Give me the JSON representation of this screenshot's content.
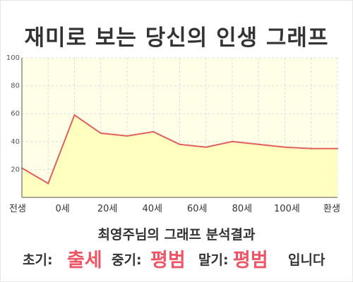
{
  "title": "재미로 보는 당신의 인생 그래프",
  "subtitle": "최영주님의 그래프 분석결과",
  "result": {
    "early_label": "초기:",
    "early_value": "출세",
    "mid_label": "중기:",
    "mid_value": "평범",
    "late_label": "말기:",
    "late_value": "평범",
    "suffix": "입니다"
  },
  "colors": {
    "accent": "#ee5566",
    "line": "#e06060",
    "fill": "#ffffc0",
    "plot_bg": "#ffffe8",
    "grid": "#dddddd"
  },
  "chart_data": {
    "type": "area",
    "title": "재미로 보는 당신의 인생 그래프",
    "x": [
      0,
      1,
      2,
      3,
      4,
      5,
      6,
      7,
      8,
      9,
      10,
      11,
      12
    ],
    "y": [
      21,
      10,
      59,
      46,
      44,
      47,
      38,
      36,
      40,
      38,
      36,
      35,
      35
    ],
    "xlabel": "",
    "ylabel": "",
    "ylim": [
      0,
      100
    ],
    "yticks": [
      20,
      40,
      60,
      80,
      100
    ],
    "xtick_labels": [
      "전생",
      "0세",
      "20세",
      "40세",
      "60세",
      "80세",
      "100세",
      "환생"
    ],
    "grid": true
  }
}
